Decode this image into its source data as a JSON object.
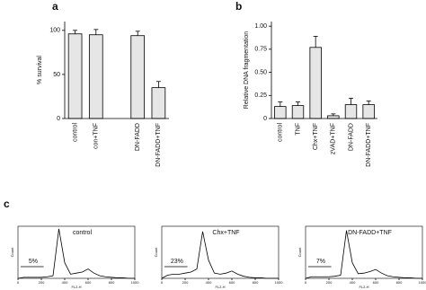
{
  "chart_data": [
    {
      "type": "bar",
      "panel_label": "a",
      "y_label": "% survival",
      "categories": [
        "control",
        "con+TNF",
        null,
        "DN-FADD",
        "DN-FADD+TNF"
      ],
      "values": [
        96,
        95,
        null,
        94,
        35
      ],
      "errors": [
        4,
        6,
        null,
        5,
        7
      ],
      "color": "#e6e6e6",
      "ylim": [
        0,
        110
      ],
      "yticks": [
        0,
        50,
        100
      ]
    },
    {
      "type": "bar",
      "panel_label": "b",
      "y_label": "Relative DNA fragmentation",
      "categories": [
        "control",
        "TNF",
        "Chx+TNF",
        "zVAD+TNF",
        "DN-FADD",
        "DN-FADD+TNF"
      ],
      "values": [
        0.13,
        0.14,
        0.77,
        0.03,
        0.15,
        0.15
      ],
      "errors": [
        0.05,
        0.04,
        0.12,
        0.02,
        0.07,
        0.04
      ],
      "color": "#e6e6e6",
      "ylim": [
        0,
        1.05
      ],
      "yticks": [
        0,
        0.25,
        {
          "value": 0.5,
          "label": "0.50"
        },
        0.75,
        {
          "value": 1,
          "label": "1.00"
        }
      ]
    },
    {
      "type": "line",
      "panel_label": "c",
      "title": "control",
      "annotation": "5%",
      "x_label": "FL2-H",
      "y_label": "Count",
      "x": [
        0,
        50,
        100,
        150,
        200,
        250,
        300,
        350,
        400,
        450,
        500,
        550,
        600,
        650,
        700,
        750,
        800,
        850,
        900,
        950,
        1000
      ],
      "series": [
        {
          "name": "control",
          "color": "#222",
          "values": [
            0,
            2,
            2,
            2,
            2,
            3,
            5,
            95,
            30,
            8,
            10,
            12,
            18,
            10,
            5,
            3,
            2,
            1,
            1,
            0,
            0
          ]
        }
      ],
      "xlim": [
        0,
        1000
      ],
      "ylim": [
        0,
        100
      ],
      "xticks": [
        0,
        200,
        400,
        600,
        800,
        1000
      ]
    },
    {
      "type": "line",
      "title": "Chx+TNF",
      "annotation": "23%",
      "x_label": "FL2-H",
      "y_label": "Count",
      "x": [
        0,
        50,
        100,
        150,
        200,
        250,
        300,
        350,
        400,
        450,
        500,
        550,
        600,
        650,
        700,
        750,
        800,
        850,
        900,
        950,
        1000
      ],
      "series": [
        {
          "name": "Chx+TNF",
          "color": "#222",
          "values": [
            0,
            6,
            8,
            8,
            10,
            12,
            18,
            90,
            35,
            10,
            8,
            10,
            14,
            8,
            4,
            2,
            1,
            1,
            0,
            0,
            0
          ]
        }
      ],
      "xlim": [
        0,
        1000
      ],
      "ylim": [
        0,
        100
      ],
      "xticks": [
        0,
        200,
        400,
        600,
        800,
        1000
      ]
    },
    {
      "type": "line",
      "title": "DN-FADD+TNF",
      "annotation": "7%",
      "x_label": "FL2-H",
      "y_label": "Count",
      "x": [
        0,
        50,
        100,
        150,
        200,
        250,
        300,
        350,
        400,
        450,
        500,
        550,
        600,
        650,
        700,
        750,
        800,
        850,
        900,
        950,
        1000
      ],
      "series": [
        {
          "name": "DN-FADD+TNF",
          "color": "#222",
          "values": [
            0,
            3,
            3,
            3,
            3,
            4,
            6,
            92,
            30,
            9,
            10,
            13,
            17,
            10,
            5,
            3,
            2,
            1,
            1,
            0,
            0
          ]
        }
      ],
      "xlim": [
        0,
        1000
      ],
      "ylim": [
        0,
        100
      ],
      "xticks": [
        0,
        200,
        400,
        600,
        800,
        1000
      ]
    }
  ]
}
